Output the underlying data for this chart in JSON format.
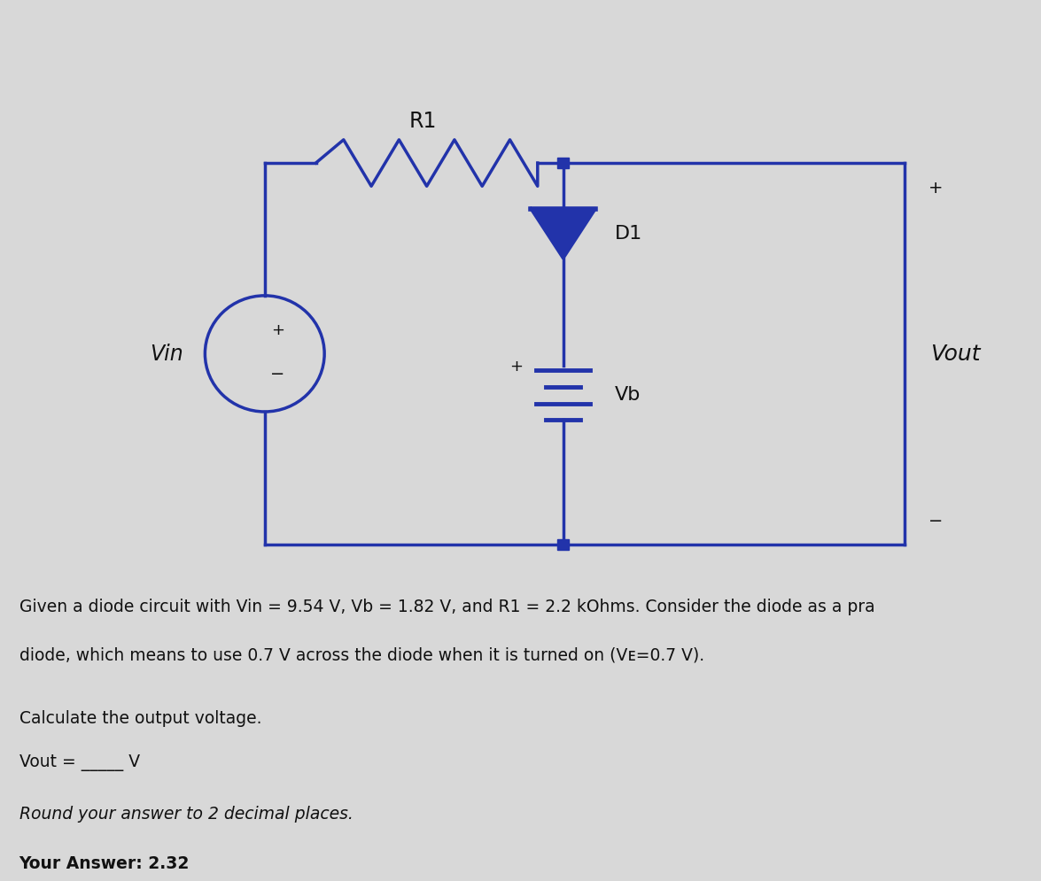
{
  "background_color": "#d8d8d8",
  "circuit_color": "#2233aa",
  "line_width": 2.5,
  "text_color": "#111111",
  "vin_label": "Vin",
  "r1_label": "R1",
  "d1_label": "D1",
  "vb_label": "Vb",
  "vout_label": "Vout",
  "problem_line1": "Given a diode circuit with Vin = 9.54 V, Vb = 1.82 V, and R1 = 2.2 kOhms. Consider the diode as a pra",
  "problem_line2": "diode, which means to use 0.7 V across the diode when it is turned on (Vᴇ=0.7 V).",
  "calc_line": "Calculate the output voltage.",
  "vout_line": "Vout = _____ V",
  "round_line": "Round your answer to 2 decimal places.",
  "answer_line": "Your Answer: 2.32"
}
